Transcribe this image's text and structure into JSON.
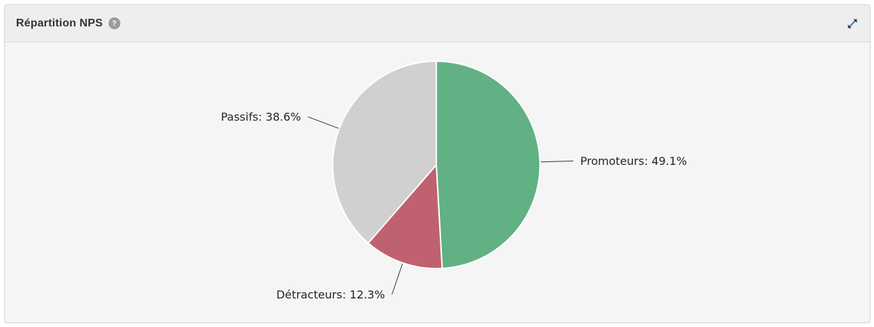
{
  "card": {
    "title": "Répartition NPS",
    "help_glyph": "?",
    "icons": {
      "help": "question-mark-circle-icon",
      "expand": "diagonal-resize-arrows-icon"
    }
  },
  "chart_data": {
    "type": "pie",
    "title": "Répartition NPS",
    "start_angle_deg": 0,
    "direction": "clockwise",
    "legend": "none",
    "slice_border_color": "#ffffff",
    "label_format": "{label}: {value}%",
    "slices": [
      {
        "label": "Promoteurs",
        "value": 49.1,
        "color": "#61b185"
      },
      {
        "label": "Détracteurs",
        "value": 12.3,
        "color": "#c0616f"
      },
      {
        "label": "Passifs",
        "value": 38.6,
        "color": "#d0d0d0"
      }
    ],
    "data_labels": [
      "Promoteurs: 49.1%",
      "Détracteurs: 12.3%",
      "Passifs: 38.6%"
    ]
  }
}
